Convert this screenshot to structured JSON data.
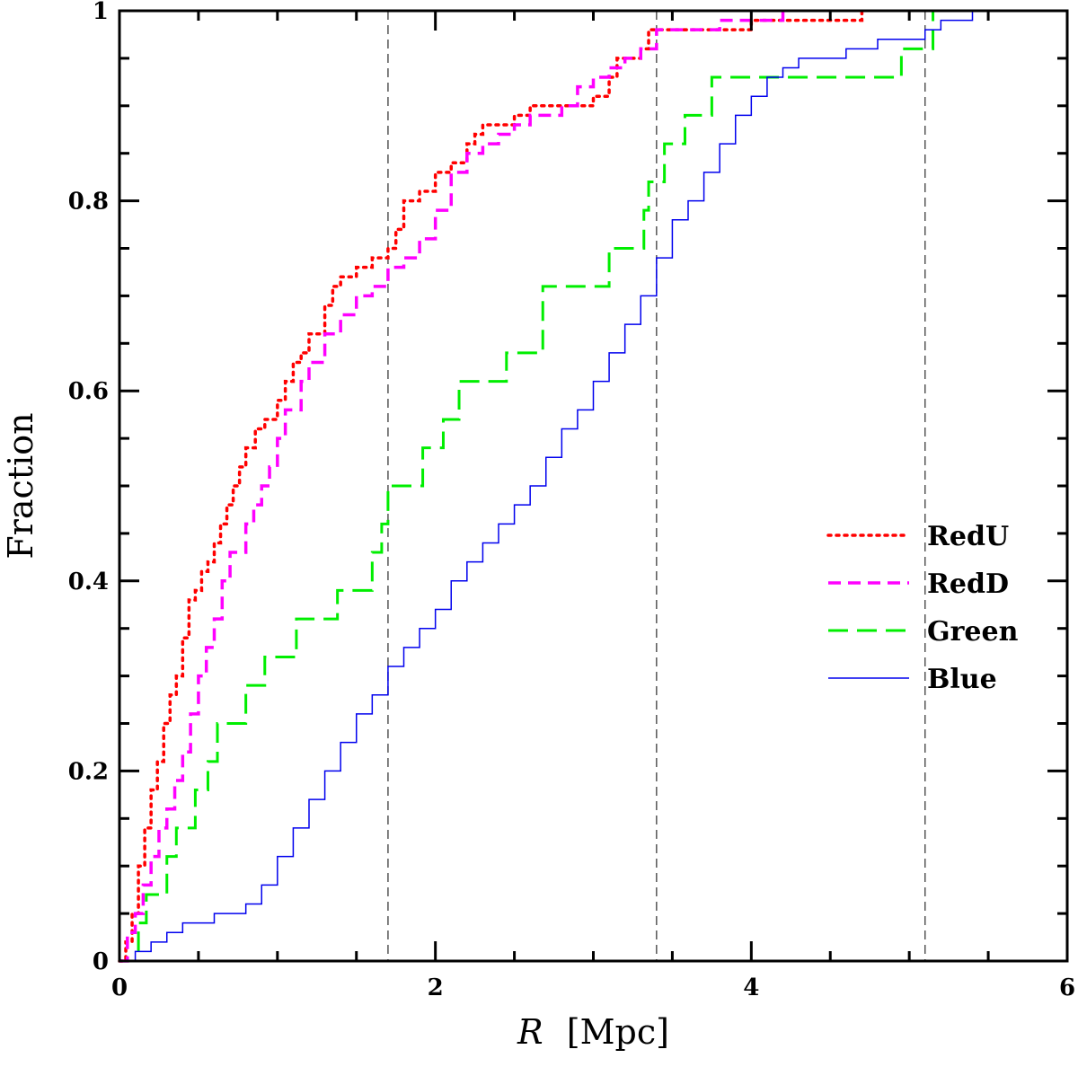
{
  "chart_data": {
    "type": "line",
    "title": "",
    "xlabel": "[Mpc]",
    "xlabel_symbol": "R",
    "ylabel": "Fraction",
    "xlim": [
      0,
      6
    ],
    "ylim": [
      0,
      1
    ],
    "x_ticks": [
      0,
      2,
      4,
      6
    ],
    "x_tick_labels": [
      "0",
      "2",
      "4",
      "6"
    ],
    "y_ticks": [
      0,
      0.2,
      0.4,
      0.6,
      0.8,
      1
    ],
    "y_tick_labels": [
      "0",
      "0.2",
      "0.4",
      "0.6",
      "0.8",
      "1"
    ],
    "step": true,
    "grid": false,
    "legend_position": "center-right",
    "vertical_lines": [
      1.7,
      3.4,
      5.1
    ],
    "vline_color": "#555555",
    "series": [
      {
        "name": "RedU",
        "color": "#ff0000",
        "dash": "dotted",
        "x": [
          0,
          0.04,
          0.08,
          0.12,
          0.16,
          0.2,
          0.24,
          0.28,
          0.32,
          0.36,
          0.4,
          0.44,
          0.48,
          0.52,
          0.56,
          0.6,
          0.64,
          0.68,
          0.72,
          0.76,
          0.8,
          0.86,
          0.92,
          1.0,
          1.05,
          1.1,
          1.15,
          1.2,
          1.3,
          1.35,
          1.4,
          1.5,
          1.6,
          1.7,
          1.75,
          1.8,
          1.9,
          2.0,
          2.1,
          2.2,
          2.25,
          2.3,
          2.5,
          2.6,
          2.8,
          3.0,
          3.1,
          3.15,
          3.3,
          3.35,
          3.5,
          3.7,
          4.0,
          4.5,
          4.7
        ],
        "y": [
          0,
          0.02,
          0.05,
          0.1,
          0.14,
          0.18,
          0.21,
          0.25,
          0.28,
          0.3,
          0.34,
          0.38,
          0.39,
          0.41,
          0.42,
          0.44,
          0.46,
          0.48,
          0.5,
          0.52,
          0.54,
          0.56,
          0.57,
          0.59,
          0.61,
          0.63,
          0.64,
          0.66,
          0.69,
          0.71,
          0.72,
          0.73,
          0.74,
          0.75,
          0.77,
          0.8,
          0.81,
          0.83,
          0.84,
          0.86,
          0.87,
          0.88,
          0.89,
          0.9,
          0.9,
          0.91,
          0.93,
          0.95,
          0.96,
          0.98,
          0.98,
          0.98,
          0.99,
          0.99,
          1.0
        ]
      },
      {
        "name": "RedD",
        "color": "#ff00ff",
        "dash": "short-dash",
        "x": [
          0,
          0.05,
          0.1,
          0.15,
          0.2,
          0.25,
          0.3,
          0.35,
          0.4,
          0.45,
          0.5,
          0.55,
          0.6,
          0.65,
          0.7,
          0.8,
          0.85,
          0.9,
          0.95,
          1.0,
          1.05,
          1.15,
          1.2,
          1.3,
          1.4,
          1.5,
          1.6,
          1.7,
          1.8,
          1.9,
          2.0,
          2.1,
          2.2,
          2.3,
          2.4,
          2.5,
          2.6,
          2.8,
          2.9,
          3.0,
          3.1,
          3.2,
          3.3,
          3.4,
          3.6,
          3.8,
          4.0,
          4.2
        ],
        "y": [
          0,
          0.03,
          0.05,
          0.08,
          0.11,
          0.14,
          0.16,
          0.19,
          0.22,
          0.26,
          0.3,
          0.33,
          0.36,
          0.4,
          0.43,
          0.46,
          0.48,
          0.5,
          0.52,
          0.55,
          0.58,
          0.61,
          0.63,
          0.66,
          0.68,
          0.7,
          0.71,
          0.73,
          0.74,
          0.76,
          0.79,
          0.83,
          0.85,
          0.86,
          0.87,
          0.88,
          0.89,
          0.9,
          0.92,
          0.93,
          0.94,
          0.95,
          0.96,
          0.98,
          0.98,
          0.99,
          0.99,
          1.0
        ]
      },
      {
        "name": "Green",
        "color": "#00ee00",
        "dash": "long-dash",
        "x": [
          0,
          0.12,
          0.17,
          0.3,
          0.36,
          0.48,
          0.56,
          0.62,
          0.8,
          0.92,
          1.12,
          1.38,
          1.6,
          1.66,
          1.7,
          1.92,
          2.05,
          2.15,
          2.45,
          2.68,
          3.1,
          3.32,
          3.35,
          3.45,
          3.58,
          3.75,
          4.5,
          4.95,
          5.15
        ],
        "y": [
          0,
          0.04,
          0.07,
          0.11,
          0.14,
          0.18,
          0.21,
          0.25,
          0.29,
          0.32,
          0.36,
          0.39,
          0.43,
          0.46,
          0.5,
          0.54,
          0.57,
          0.61,
          0.64,
          0.71,
          0.75,
          0.79,
          0.82,
          0.86,
          0.89,
          0.93,
          0.93,
          0.96,
          1.0
        ]
      },
      {
        "name": "Blue",
        "color": "#0000ee",
        "dash": "solid",
        "x": [
          0,
          0.1,
          0.2,
          0.3,
          0.4,
          0.5,
          0.6,
          0.7,
          0.8,
          0.9,
          1.0,
          1.1,
          1.2,
          1.3,
          1.4,
          1.5,
          1.6,
          1.7,
          1.8,
          1.9,
          2.0,
          2.1,
          2.2,
          2.3,
          2.4,
          2.5,
          2.6,
          2.7,
          2.8,
          2.9,
          3.0,
          3.1,
          3.2,
          3.3,
          3.4,
          3.5,
          3.6,
          3.7,
          3.8,
          3.9,
          4.0,
          4.1,
          4.2,
          4.3,
          4.4,
          4.5,
          4.6,
          4.7,
          4.8,
          4.9,
          5.0,
          5.1,
          5.2,
          5.4,
          5.6,
          5.8
        ],
        "y": [
          0,
          0.01,
          0.02,
          0.03,
          0.04,
          0.04,
          0.05,
          0.05,
          0.06,
          0.08,
          0.11,
          0.14,
          0.17,
          0.2,
          0.23,
          0.26,
          0.28,
          0.31,
          0.33,
          0.35,
          0.37,
          0.4,
          0.42,
          0.44,
          0.46,
          0.48,
          0.5,
          0.53,
          0.56,
          0.58,
          0.61,
          0.64,
          0.67,
          0.7,
          0.74,
          0.78,
          0.8,
          0.83,
          0.86,
          0.89,
          0.91,
          0.93,
          0.94,
          0.95,
          0.95,
          0.95,
          0.96,
          0.96,
          0.97,
          0.97,
          0.97,
          0.98,
          0.99,
          1.0,
          1.0,
          1.0
        ]
      }
    ]
  }
}
